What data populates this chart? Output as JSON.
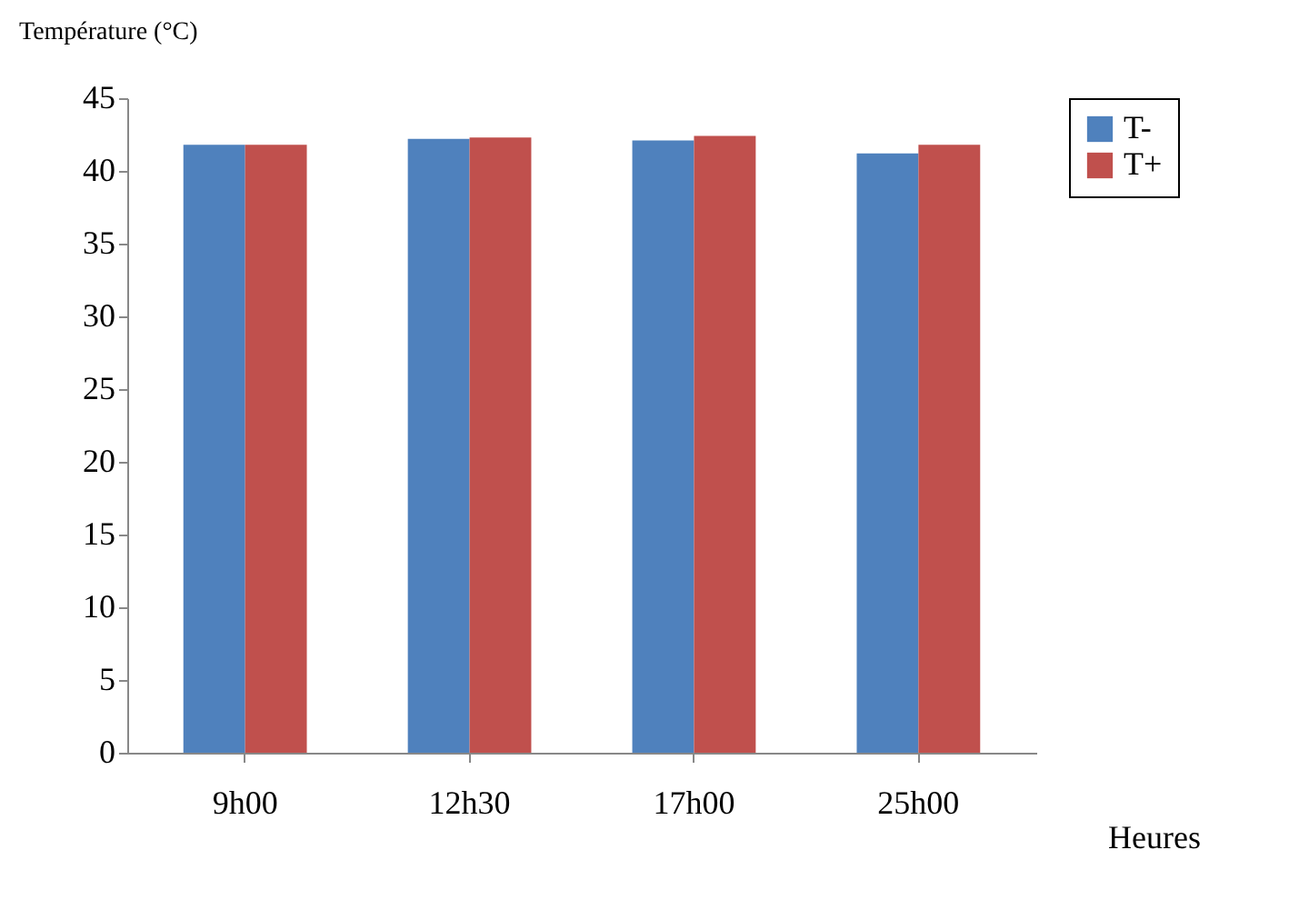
{
  "chart_data": {
    "type": "bar",
    "ylabel": "Température (°C)",
    "xlabel": "Heures",
    "categories": [
      "9h00",
      "12h30",
      "17h00",
      "25h00"
    ],
    "series": [
      {
        "name": "T-",
        "color": "#4f81bd",
        "values": [
          41.8,
          42.2,
          42.1,
          41.2
        ]
      },
      {
        "name": "T+",
        "color": "#c0504d",
        "values": [
          41.8,
          42.3,
          42.4,
          41.8
        ]
      }
    ],
    "ylim": [
      0,
      45
    ],
    "yticks": [
      0,
      5,
      10,
      15,
      20,
      25,
      30,
      35,
      40,
      45
    ],
    "grid": false,
    "legend": "right"
  }
}
